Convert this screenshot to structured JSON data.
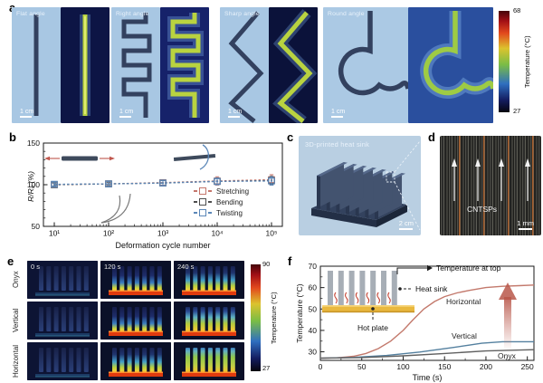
{
  "figure": {
    "panel_a": {
      "label": "a",
      "shapes": [
        {
          "name": "Flat angle"
        },
        {
          "name": "Right angle"
        },
        {
          "name": "Sharp angle"
        },
        {
          "name": "Round angle"
        }
      ],
      "scale_bar": "1 cm",
      "colorbar": {
        "max": "68",
        "min": "27",
        "label": "Temperature (°C)",
        "stops": [
          "#45050a",
          "#a31016 10%",
          "#e2491d 22%",
          "#dcc32e 37%",
          "#7abd45 53%",
          "#2f6fc0 72%",
          "#141d60 88%",
          "#05050e 100%"
        ]
      }
    },
    "panel_b": {
      "label": "b"
    },
    "panel_c": {
      "label": "c",
      "title": "3D-printed heat sink",
      "scale_bar": "2 cm"
    },
    "panel_d": {
      "label": "d",
      "annotation": "CNTSPs",
      "scale_bar": "1 mm"
    },
    "panel_e": {
      "label": "e",
      "rows": [
        "Onyx",
        "Vertical",
        "Horizontal"
      ],
      "times": [
        "0 s",
        "120 s",
        "240 s"
      ],
      "colorbar": {
        "max": "90",
        "min": "27",
        "label": "Temperature (°C)",
        "stops": [
          "#45050a",
          "#a31016 10%",
          "#e2491d 22%",
          "#dcc32e 37%",
          "#7abd45 53%",
          "#2f6fc0 72%",
          "#141d60 88%",
          "#05050e 100%"
        ]
      }
    },
    "panel_f": {
      "label": "f"
    }
  },
  "chart_data": [
    {
      "panel": "b",
      "type": "scatter",
      "xlabel": "Deformation cycle number",
      "ylabel": "R/R₀ (%)",
      "xscale": "log",
      "x": [
        10,
        100,
        1000,
        10000,
        100000
      ],
      "xticklabels": [
        "10¹",
        "10²",
        "10³",
        "10⁴",
        "10⁵"
      ],
      "ylim": [
        50,
        150
      ],
      "yticks": [
        150,
        100,
        50
      ],
      "grid": false,
      "legend_position": "lower right",
      "series": [
        {
          "name": "Stretching",
          "color": "#c4766b",
          "values": [
            100,
            101,
            102.5,
            104.5,
            106
          ],
          "err": [
            2,
            2,
            3,
            5,
            6
          ]
        },
        {
          "name": "Bending",
          "color": "#4d4d4d",
          "values": [
            100,
            101,
            102,
            104,
            105
          ],
          "err": [
            2,
            2,
            3,
            4,
            5
          ]
        },
        {
          "name": "Twisting",
          "color": "#5b87b8",
          "values": [
            100.5,
            101,
            102,
            104,
            104.5
          ],
          "err": [
            2,
            3,
            3,
            4,
            5
          ]
        }
      ]
    },
    {
      "panel": "f",
      "type": "line",
      "xlabel": "Time (s)",
      "ylabel": "Temperature (°C)",
      "xlim": [
        0,
        258
      ],
      "ylim": [
        26,
        70
      ],
      "xticks": [
        0,
        50,
        100,
        150,
        200,
        250
      ],
      "yticks": [
        30,
        40,
        50,
        60,
        70
      ],
      "grid": false,
      "series": [
        {
          "name": "Horizontal",
          "color": "#c3796c",
          "points": [
            [
              0,
              27
            ],
            [
              20,
              27.2
            ],
            [
              40,
              27.9
            ],
            [
              55,
              29.2
            ],
            [
              70,
              31.5
            ],
            [
              85,
              35
            ],
            [
              100,
              40
            ],
            [
              112,
              45
            ],
            [
              125,
              50
            ],
            [
              138,
              53.5
            ],
            [
              150,
              55.8
            ],
            [
              165,
              57.5
            ],
            [
              180,
              58.7
            ],
            [
              200,
              60
            ],
            [
              220,
              60.6
            ],
            [
              240,
              60.9
            ],
            [
              258,
              61.2
            ]
          ]
        },
        {
          "name": "Vertical",
          "color": "#54809f",
          "points": [
            [
              0,
              27
            ],
            [
              40,
              27.4
            ],
            [
              80,
              28.3
            ],
            [
              120,
              29.9
            ],
            [
              160,
              32
            ],
            [
              195,
              34
            ],
            [
              220,
              34.7
            ],
            [
              258,
              34.7
            ]
          ]
        },
        {
          "name": "Onyx",
          "color": "#606060",
          "points": [
            [
              0,
              27
            ],
            [
              50,
              27.3
            ],
            [
              100,
              28.1
            ],
            [
              150,
              29.2
            ],
            [
              200,
              30.4
            ],
            [
              258,
              31
            ]
          ]
        }
      ],
      "annotations": {
        "arrow_label": "Temperature at top",
        "heat_sink": "Heat sink",
        "hot_plate": "Hot plate"
      }
    }
  ]
}
